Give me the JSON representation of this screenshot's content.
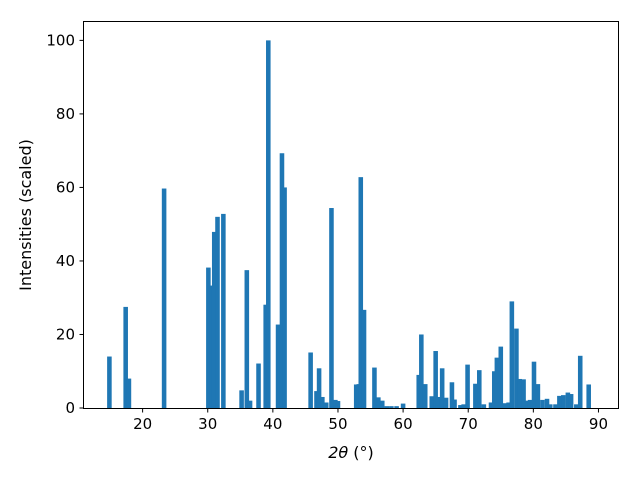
{
  "chart_data": {
    "type": "bar",
    "xlabel_main": "2θ",
    "xlabel_unit": "(°)",
    "ylabel": "Intensities (scaled)",
    "xlim": [
      11,
      93
    ],
    "ylim": [
      0,
      105
    ],
    "xticks": [
      20,
      30,
      40,
      50,
      60,
      70,
      80,
      90
    ],
    "yticks": [
      0,
      20,
      40,
      60,
      80,
      100
    ],
    "bar_color": "#1f77b4",
    "bar_width": 0.7,
    "bars": [
      [
        14.9,
        14.0
      ],
      [
        17.4,
        27.5
      ],
      [
        17.9,
        8.0
      ],
      [
        23.3,
        59.7
      ],
      [
        30.1,
        38.2
      ],
      [
        30.6,
        33.3
      ],
      [
        31.0,
        47.9
      ],
      [
        31.5,
        52.0
      ],
      [
        32.4,
        52.8
      ],
      [
        35.2,
        4.8
      ],
      [
        36.0,
        37.5
      ],
      [
        36.5,
        2.0
      ],
      [
        37.8,
        12.1
      ],
      [
        38.9,
        28.1
      ],
      [
        39.3,
        100.0
      ],
      [
        40.8,
        22.7
      ],
      [
        41.4,
        69.3
      ],
      [
        41.8,
        60.0
      ],
      [
        45.8,
        15.1
      ],
      [
        46.7,
        4.6
      ],
      [
        47.1,
        10.8
      ],
      [
        47.6,
        3.0
      ],
      [
        48.2,
        1.5
      ],
      [
        49.0,
        54.4
      ],
      [
        49.6,
        2.2
      ],
      [
        50.0,
        1.9
      ],
      [
        52.8,
        6.4
      ],
      [
        53.2,
        6.5
      ],
      [
        53.5,
        62.8
      ],
      [
        54.0,
        26.7
      ],
      [
        55.6,
        11.0
      ],
      [
        56.2,
        2.9
      ],
      [
        56.8,
        2.0
      ],
      [
        57.5,
        0.5
      ],
      [
        58.2,
        0.5
      ],
      [
        59.0,
        0.5
      ],
      [
        60.0,
        1.2
      ],
      [
        62.4,
        9.0
      ],
      [
        62.8,
        20.0
      ],
      [
        63.4,
        6.5
      ],
      [
        64.4,
        3.2
      ],
      [
        65.0,
        15.5
      ],
      [
        65.4,
        3.0
      ],
      [
        66.0,
        10.8
      ],
      [
        66.6,
        2.8
      ],
      [
        67.5,
        7.0
      ],
      [
        67.9,
        2.3
      ],
      [
        68.8,
        0.8
      ],
      [
        69.3,
        1.0
      ],
      [
        69.9,
        11.8
      ],
      [
        71.1,
        6.6
      ],
      [
        71.7,
        10.3
      ],
      [
        72.4,
        1.0
      ],
      [
        73.5,
        1.5
      ],
      [
        74.0,
        10.0
      ],
      [
        74.4,
        13.7
      ],
      [
        75.0,
        16.7
      ],
      [
        75.6,
        1.3
      ],
      [
        76.2,
        1.5
      ],
      [
        76.7,
        29.0
      ],
      [
        77.4,
        21.6
      ],
      [
        77.9,
        7.9
      ],
      [
        78.5,
        7.8
      ],
      [
        79.1,
        2.0
      ],
      [
        79.5,
        2.2
      ],
      [
        80.1,
        12.6
      ],
      [
        80.7,
        6.5
      ],
      [
        81.4,
        2.2
      ],
      [
        82.1,
        2.5
      ],
      [
        82.6,
        1.0
      ],
      [
        83.4,
        1.0
      ],
      [
        84.0,
        3.3
      ],
      [
        84.6,
        3.5
      ],
      [
        85.3,
        4.2
      ],
      [
        85.8,
        3.8
      ],
      [
        86.6,
        1.0
      ],
      [
        87.2,
        14.2
      ],
      [
        88.5,
        6.4
      ]
    ]
  }
}
